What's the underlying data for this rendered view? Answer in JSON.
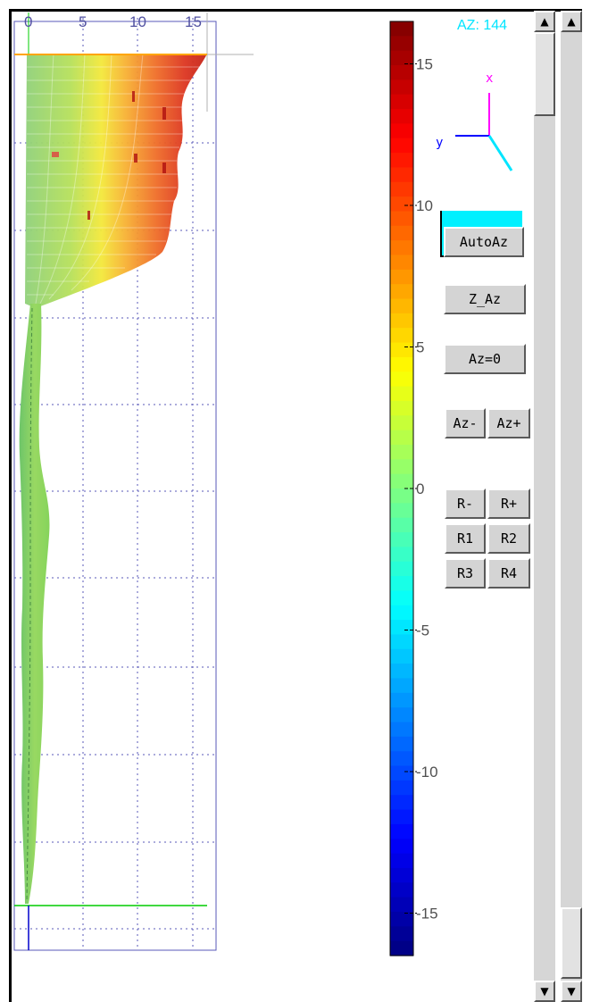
{
  "plot": {
    "x_ticks": [
      "0",
      "5",
      "10",
      "15"
    ]
  },
  "colorbar": {
    "ticks": [
      "15",
      "10",
      "5",
      "0",
      "-5",
      "-10",
      "-15"
    ],
    "tick_values": [
      15,
      10,
      5,
      0,
      -5,
      -10,
      -15
    ],
    "range": [
      -16.5,
      16.5
    ]
  },
  "axes_widget": {
    "az_label": "AZ: 144",
    "x_label": "x",
    "y_label": "y"
  },
  "buttons": {
    "autoaz": "AutoAz",
    "z_az": "Z_Az",
    "az_zero": "Az=0",
    "az_minus": "Az-",
    "az_plus": "Az+",
    "r_minus": "R-",
    "r_plus": "R+",
    "r1": "R1",
    "r2": "R2",
    "r3": "R3",
    "r4": "R4"
  },
  "scrollbars": {
    "up_arrow": "▲",
    "down_arrow": "▼"
  },
  "colors": {
    "axis_widget_cyan": "#00e5ff",
    "axis_widget_magenta": "#ff00ff",
    "axis_widget_blue": "#0000ff",
    "grid": "#7a7ad0",
    "orange_line": "#ffa500",
    "green_line": "#00cc00"
  }
}
